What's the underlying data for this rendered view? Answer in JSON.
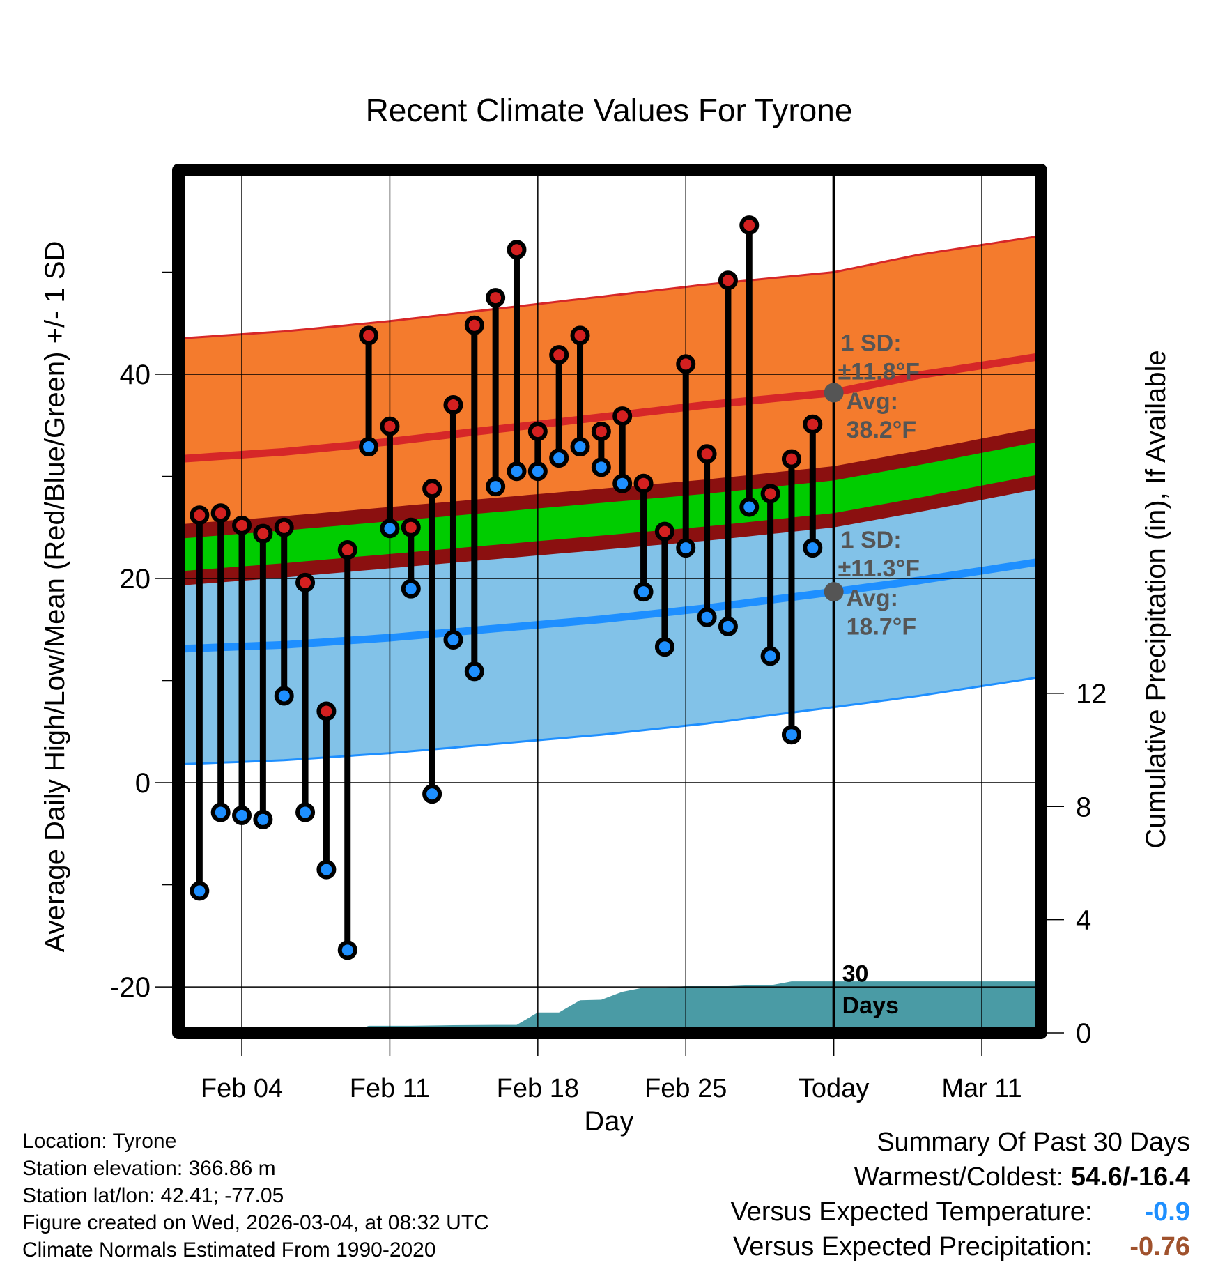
{
  "chart_data": {
    "type": "line",
    "title": "Recent Climate Values For Tyrone",
    "xlabel": "Day",
    "ylabel": "Average Daily High/Low/Mean (Red/Blue/Green) +/- 1 SD",
    "y2label": "Cumulative Precipitation (in), If Available",
    "xlim": [
      0,
      40.8
    ],
    "ylim": [
      -24.5,
      60
    ],
    "y2lim": [
      0,
      30.5
    ],
    "x_ticks": [
      {
        "x": 3,
        "label": "Feb 04"
      },
      {
        "x": 10,
        "label": "Feb 11"
      },
      {
        "x": 17,
        "label": "Feb 18"
      },
      {
        "x": 24,
        "label": "Feb 25"
      },
      {
        "x": 31,
        "label": "Today"
      },
      {
        "x": 38,
        "label": "Mar 11"
      }
    ],
    "y_ticks": [
      -20,
      0,
      20,
      40
    ],
    "y2_ticks": [
      0,
      4,
      8,
      12
    ],
    "grid": true,
    "days": [
      1,
      2,
      3,
      4,
      5,
      6,
      7,
      8,
      9,
      10,
      11,
      12,
      13,
      14,
      15,
      16,
      17,
      18,
      19,
      20,
      21,
      22,
      23,
      24,
      25,
      26,
      27,
      28,
      29,
      30
    ],
    "highs": [
      26.2,
      26.4,
      25.2,
      24.4,
      25.0,
      19.6,
      7.0,
      22.8,
      43.8,
      34.9,
      25.0,
      28.8,
      37.0,
      44.8,
      47.5,
      52.2,
      34.4,
      41.9,
      43.8,
      34.4,
      35.9,
      29.3,
      24.6,
      41.0,
      32.2,
      49.2,
      54.6,
      28.3,
      31.7,
      35.1
    ],
    "lows": [
      -10.6,
      -2.9,
      -3.2,
      -3.6,
      8.5,
      -2.9,
      -8.5,
      -16.4,
      32.9,
      24.9,
      19.0,
      -1.1,
      14.0,
      10.9,
      29.0,
      30.5,
      30.5,
      31.8,
      32.9,
      30.9,
      29.3,
      18.7,
      13.3,
      23.0,
      16.2,
      15.3,
      27.0,
      12.4,
      4.7,
      23.0
    ],
    "normal_days": [
      0,
      5,
      10,
      15,
      20,
      25,
      31,
      35,
      40
    ],
    "normal_high": [
      31.7,
      32.4,
      33.4,
      34.6,
      35.8,
      37.0,
      38.2,
      39.9,
      41.5
    ],
    "high_sd": 11.8,
    "normal_low": [
      13.1,
      13.5,
      14.2,
      15.1,
      16.0,
      17.1,
      18.7,
      19.8,
      21.4
    ],
    "low_sd": 11.3,
    "normal_mean": [
      22.3,
      23.1,
      24.0,
      24.9,
      25.8,
      26.7,
      28.0,
      29.5,
      31.5
    ],
    "mean_band": 1.6,
    "precip_days": [
      0,
      8,
      9,
      10,
      11,
      13,
      15,
      16,
      17,
      18,
      19,
      20,
      21,
      22,
      23,
      24,
      25,
      26,
      27,
      28,
      29,
      30,
      40.8
    ],
    "precip_cum": [
      0,
      0,
      0.25,
      0.25,
      0.25,
      0.27,
      0.28,
      0.28,
      0.72,
      0.72,
      1.15,
      1.17,
      1.45,
      1.6,
      1.6,
      1.65,
      1.65,
      1.65,
      1.68,
      1.68,
      1.82,
      1.82,
      1.82
    ],
    "annotations": {
      "high_sd_title": "1 SD:",
      "high_sd_value": "±11.8°F",
      "high_avg_label": "Avg:",
      "high_avg_value": "38.2°F",
      "low_sd_title": "1 SD:",
      "low_sd_value": "±11.3°F",
      "low_avg_label": "Avg:",
      "low_avg_value": "18.7°F",
      "days_count": "30",
      "days_label": "Days"
    },
    "today_x": 31,
    "today_high_avg": 38.2,
    "today_low_avg": 18.7
  },
  "colors": {
    "high_band": "#f47b2d",
    "high_line": "#d62728",
    "low_band": "#82c2e8",
    "low_line": "#1e8fff",
    "mean_band": "#00cc00",
    "mean_edge": "#8b1010",
    "precip": "#4a9ba5",
    "precip_change": "#a0522d"
  },
  "info": {
    "location": "Location: Tyrone",
    "elevation": "Station elevation: 366.86 m",
    "latlon": "Station lat/lon: 42.41; -77.05",
    "created": "Figure created on Wed, 2026-03-04, at 08:32 UTC",
    "normals": "Climate Normals Estimated From 1990-2020"
  },
  "summary": {
    "title": "Summary Of Past 30 Days",
    "warm_cold_label": "Warmest/Coldest:",
    "warm_cold_value": "54.6/-16.4",
    "temp_label": "Versus Expected Temperature:",
    "temp_value": "-0.9",
    "precip_label": "Versus Expected Precipitation:",
    "precip_value": "-0.76"
  }
}
